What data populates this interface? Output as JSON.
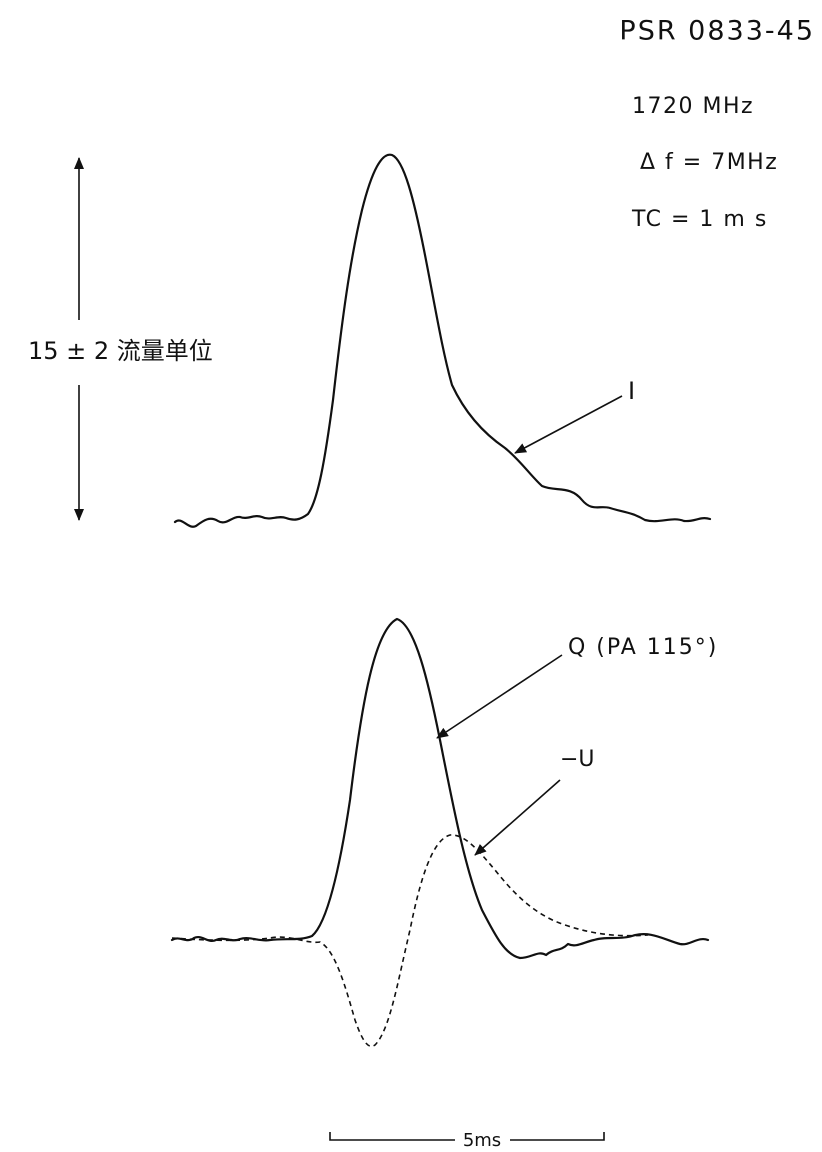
{
  "header": {
    "title": "PSR 0833-45"
  },
  "parameters": [
    "1720 MHz",
    "Δ f = 7MHz",
    "TC = 1 m s"
  ],
  "scale_label": "15 ± 2 流量单位",
  "curve_labels": {
    "intensity": "I",
    "linear_q": "Q (PA 115°)",
    "linear_u": "−U"
  },
  "time_scale": "5ms"
}
